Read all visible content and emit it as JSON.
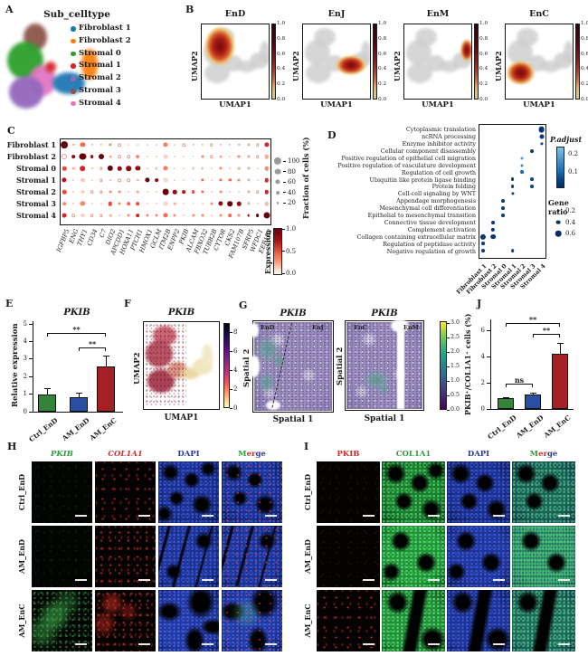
{
  "panelA": {
    "label": "A",
    "title": "Sub_celltype",
    "legend": [
      {
        "label": "Fibroblast 1",
        "color": "#1f77b4"
      },
      {
        "label": "Fibroblast 2",
        "color": "#ff7f0e"
      },
      {
        "label": "Stromal 0",
        "color": "#2ca02c"
      },
      {
        "label": "Stromal 1",
        "color": "#d62728"
      },
      {
        "label": "Stromal 2",
        "color": "#9467bd"
      },
      {
        "label": "Stromal 3",
        "color": "#8c564b"
      },
      {
        "label": "Stromal 4",
        "color": "#e377c2"
      }
    ]
  },
  "panelB": {
    "label": "B",
    "xlabel": "UMAP1",
    "ylabel": "UMAP2",
    "colorbar_ticks": [
      "1.0",
      "0.8",
      "0.6",
      "0.4",
      "0.2",
      "0.0"
    ],
    "subplots": [
      {
        "title": "EnD"
      },
      {
        "title": "EnJ"
      },
      {
        "title": "EnM"
      },
      {
        "title": "EnC"
      }
    ]
  },
  "panelC": {
    "label": "C",
    "size_legend_title": "Fraction of cells (%)",
    "size_legend_values": [
      "100",
      "80",
      "60",
      "40",
      "20"
    ],
    "colorbar_title": "Expression",
    "colorbar_ticks": [
      "1.0",
      "0.5",
      "0.0"
    ]
  },
  "panelD": {
    "label": "D",
    "padjust_title": "P.adjust",
    "padjust_ticks": [
      "0.2",
      "0.1"
    ],
    "generatio_title": "Gene ratio",
    "generatio_values": [
      "0.2",
      "0.4",
      "0.6"
    ],
    "categories": [
      "Fibroblast 1",
      "Fibroblast 2",
      "Stromal 0",
      "Stromal 1",
      "Stromal 2",
      "Stromal 3",
      "Stromal 4"
    ]
  },
  "panelE": {
    "label": "E",
    "title": "PKIB",
    "ylabel": "Relative expression"
  },
  "panelF": {
    "label": "F",
    "title": "PKIB",
    "xlabel": "UMAP1",
    "ylabel": "UMAP2",
    "colorbar_ticks": [
      "8",
      "6",
      "4",
      "2",
      "0"
    ]
  },
  "panelG": {
    "label": "G",
    "colorbar_ticks": [
      "3.0",
      "2.5",
      "2.0",
      "1.5",
      "1.0",
      "0.5",
      "0.0"
    ],
    "plots": [
      {
        "title": "PKIB",
        "xlabel": "Spatial 1",
        "ylabel": "Spatial 2",
        "region_left": "EnD",
        "region_right": "EnJ"
      },
      {
        "title": "PKIB",
        "xlabel": "Spatial 1",
        "ylabel": "Spatial 2",
        "region_left": "EnC",
        "region_right": "EnM"
      }
    ]
  },
  "panelJ": {
    "label": "J",
    "ylabel": "PKIB⁺/COL1A1⁺ cells (%)"
  },
  "panelH": {
    "label": "H",
    "columns": [
      {
        "label": "PKIB",
        "color": "#2e9e3c",
        "italic": true
      },
      {
        "label": "COL1A1",
        "color": "#cf3030",
        "italic": true
      },
      {
        "label": "DAPI",
        "color": "#2b3990",
        "italic": false
      },
      {
        "label": "Merge",
        "parts": [
          {
            "text": "M",
            "color": "#2e9e3c"
          },
          {
            "text": "er",
            "color": "#cf3030"
          },
          {
            "text": "ge",
            "color": "#2b3990"
          }
        ]
      }
    ],
    "rows": [
      "Ctrl_EnD",
      "AM_EnD",
      "AM_EnC"
    ],
    "tile_rows": [
      [
        "ifl-blank-green",
        "ifl-red-sparse",
        "ifl-dapi-a",
        "ifl-merge-a"
      ],
      [
        "ifl-blank-green",
        "ifl-red-sparse2",
        "ifl-dapi-b",
        "ifl-merge-b"
      ],
      [
        "ifl-green-blob",
        "ifl-red-med",
        "ifl-dapi-c",
        "ifl-merge-c"
      ]
    ]
  },
  "panelI": {
    "label": "I",
    "columns": [
      {
        "label": "PKIB",
        "color": "#cf3030",
        "italic": false
      },
      {
        "label": "COL1A1",
        "color": "#2e9e3c",
        "italic": false
      },
      {
        "label": "DAPI",
        "color": "#2b3990",
        "italic": false
      },
      {
        "label": "Merge",
        "parts": [
          {
            "text": "M",
            "color": "#2e9e3c"
          },
          {
            "text": "er",
            "color": "#cf3030"
          },
          {
            "text": "ge",
            "color": "#2b3990"
          }
        ]
      }
    ],
    "rows": [
      "Ctrl_EnD",
      "AM_EnD",
      "AM_EnC"
    ],
    "tile_rows": [
      [
        "ifl-blank-red",
        "ifl-colg-a",
        "ifl-dapi-d",
        "ifl-mergeI-a"
      ],
      [
        "ifl-blank-red",
        "ifl-colg-b",
        "ifl-dapi-e",
        "ifl-mergeI-b"
      ],
      [
        "ifl-red-sparse",
        "ifl-colg-c",
        "ifl-dapi-f",
        "ifl-mergeI-c"
      ]
    ]
  },
  "chart_data": [
    {
      "id": "E",
      "type": "bar",
      "title": "PKIB",
      "ylabel": "Relative expression",
      "ylim": [
        0,
        5
      ],
      "yticks": [
        5,
        4,
        3,
        2,
        1,
        0
      ],
      "categories": [
        "Ctrl_EnD",
        "AM_EnD",
        "AM_EnC"
      ],
      "values": [
        1.0,
        0.82,
        2.6
      ],
      "errors": [
        0.35,
        0.25,
        0.6
      ],
      "colors": [
        "#35823b",
        "#2a4fa2",
        "#a32125"
      ],
      "significance": [
        {
          "from": 0,
          "to": 2,
          "label": "**"
        },
        {
          "from": 1,
          "to": 2,
          "label": "**"
        }
      ]
    },
    {
      "id": "J",
      "type": "bar",
      "ylabel": "PKIB⁺/COL1A1⁺ cells (%)",
      "ylim": [
        0,
        6
      ],
      "yticks": [
        6,
        4,
        2,
        0
      ],
      "categories": [
        "Ctrl_EnD",
        "AM_EnD",
        "AM_EnC"
      ],
      "values": [
        0.8,
        1.1,
        4.2
      ],
      "errors": [
        0.12,
        0.12,
        0.85
      ],
      "colors": [
        "#35823b",
        "#2a4fa2",
        "#a32125"
      ],
      "significance": [
        {
          "from": 0,
          "to": 2,
          "label": "**"
        },
        {
          "from": 1,
          "to": 2,
          "label": "**"
        },
        {
          "from": 0,
          "to": 1,
          "label": "ns"
        }
      ]
    },
    {
      "id": "C",
      "type": "dotplot",
      "rows": [
        "Fibroblast 1",
        "Fibroblast 2",
        "Stromal 0",
        "Stromal 1",
        "Stromal 2",
        "Stromal 3",
        "Stromal 4"
      ],
      "genes": [
        "IGFBP5",
        "ENG",
        "THY1",
        "CD34",
        "C7",
        "DIO2",
        "APCDD1",
        "HOXA11",
        "PTCH1",
        "HMOX1",
        "GCLM",
        "ITM2B",
        "ENPP2",
        "PKIB",
        "ALCAM",
        "FBXO32",
        "TUBB2B",
        "CYTOR",
        "CKS2",
        "FAM107B",
        "SFRP5",
        "WFDC1",
        "EEF1B2"
      ],
      "expression": [
        [
          1.0,
          0.3,
          0.5,
          0.3,
          0.3,
          0.4,
          0.1,
          0.2,
          0.2,
          0.2,
          0.2,
          0.45,
          0.2,
          0.1,
          0.3,
          0.3,
          0.1,
          0.3,
          0.3,
          0.3,
          0.1,
          0.1,
          0.7
        ],
        [
          0.1,
          0.9,
          1.0,
          0.9,
          1.0,
          0.3,
          0.1,
          0.1,
          0.4,
          0.2,
          0.2,
          0.15,
          0.2,
          0.2,
          0.2,
          0.4,
          0.1,
          0.3,
          0.2,
          0.4,
          0.1,
          0.1,
          0.3
        ],
        [
          0.6,
          0.3,
          0.7,
          0.3,
          0.1,
          1.0,
          0.9,
          0.9,
          0.9,
          0.2,
          0.3,
          0.45,
          0.2,
          0.2,
          0.3,
          0.3,
          0.2,
          0.4,
          0.2,
          0.3,
          0.1,
          0.2,
          0.4
        ],
        [
          0.8,
          0.2,
          0.2,
          0.2,
          0.1,
          0.3,
          0.1,
          0.1,
          0.3,
          1.0,
          0.9,
          0.15,
          0.2,
          0.2,
          0.2,
          0.5,
          0.2,
          0.5,
          0.5,
          0.4,
          0.1,
          0.2,
          0.7
        ],
        [
          0.6,
          0.2,
          0.15,
          0.1,
          0.1,
          0.4,
          0.4,
          0.2,
          0.3,
          0.2,
          0.2,
          1.0,
          0.9,
          0.8,
          0.6,
          0.5,
          0.2,
          0.4,
          0.2,
          0.2,
          0.1,
          0.1,
          0.7
        ],
        [
          0.4,
          0.2,
          0.4,
          0.2,
          0.2,
          0.6,
          0.4,
          0.5,
          0.6,
          0.2,
          0.2,
          0.15,
          0.3,
          0.2,
          0.2,
          0.2,
          0.4,
          0.9,
          1.0,
          0.9,
          0.1,
          0.2,
          0.25
        ],
        [
          0.7,
          0.1,
          0.15,
          0.1,
          0.1,
          0.3,
          0.2,
          0.4,
          0.7,
          0.4,
          0.4,
          0.5,
          0.4,
          0.2,
          0.4,
          0.4,
          0.2,
          0.4,
          0.5,
          0.4,
          0.9,
          1.0,
          1.0
        ]
      ],
      "fraction": [
        [
          95,
          20,
          60,
          20,
          20,
          35,
          10,
          15,
          15,
          15,
          15,
          60,
          15,
          10,
          20,
          20,
          10,
          20,
          20,
          20,
          5,
          10,
          60
        ],
        [
          45,
          40,
          85,
          40,
          70,
          25,
          10,
          10,
          40,
          15,
          15,
          55,
          15,
          15,
          15,
          30,
          10,
          25,
          15,
          30,
          5,
          10,
          50
        ],
        [
          50,
          25,
          65,
          20,
          10,
          75,
          50,
          65,
          60,
          15,
          25,
          60,
          15,
          15,
          25,
          25,
          15,
          35,
          15,
          25,
          5,
          15,
          50
        ],
        [
          60,
          15,
          45,
          15,
          10,
          20,
          10,
          10,
          20,
          60,
          40,
          55,
          15,
          15,
          15,
          35,
          15,
          35,
          35,
          30,
          5,
          15,
          50
        ],
        [
          50,
          15,
          45,
          10,
          10,
          30,
          30,
          15,
          25,
          15,
          15,
          80,
          50,
          40,
          40,
          35,
          15,
          30,
          15,
          15,
          5,
          10,
          50
        ],
        [
          40,
          15,
          60,
          15,
          15,
          50,
          30,
          40,
          40,
          15,
          15,
          55,
          25,
          15,
          15,
          15,
          30,
          60,
          65,
          50,
          5,
          15,
          50
        ],
        [
          55,
          10,
          45,
          10,
          10,
          25,
          15,
          30,
          40,
          30,
          30,
          60,
          30,
          15,
          30,
          30,
          15,
          30,
          40,
          30,
          25,
          40,
          85
        ]
      ]
    },
    {
      "id": "D",
      "type": "dotplot",
      "categories": [
        "Fibroblast 1",
        "Fibroblast 2",
        "Stromal 0",
        "Stromal 1",
        "Stromal 2",
        "Stromal 3",
        "Stromal 4"
      ],
      "terms": [
        "Cytoplasmic translation",
        "ncRNA processing",
        "Enzyme inhibitor activity",
        "Cellular component disassembly",
        "Positive regulation of epithelial cell migration",
        "Positive regulation of vasculature development",
        "Regulation of cell growth",
        "Ubiquitin like protein ligase binding",
        "Protein folding",
        "Cell-cell signaling by WNT",
        "Appendage morphogenesis",
        "Mesenchymal cell differentiation",
        "Epithelial to mesenchymal transition",
        "Connective tissue development",
        "Complement activation",
        "Collagen containing extracellular matrix",
        "Regulation of peptidase activity",
        "Negative regulation of growth"
      ],
      "dots": [
        {
          "term": 0,
          "category": "Stromal 4",
          "gene_ratio": 0.62,
          "p_adjust": 0.01
        },
        {
          "term": 1,
          "category": "Stromal 4",
          "gene_ratio": 0.42,
          "p_adjust": 0.02
        },
        {
          "term": 2,
          "category": "Stromal 4",
          "gene_ratio": 0.22,
          "p_adjust": 0.05
        },
        {
          "term": 3,
          "category": "Stromal 3",
          "gene_ratio": 0.3,
          "p_adjust": 0.03
        },
        {
          "term": 4,
          "category": "Stromal 2",
          "gene_ratio": 0.2,
          "p_adjust": 0.22
        },
        {
          "term": 5,
          "category": "Stromal 2",
          "gene_ratio": 0.2,
          "p_adjust": 0.2
        },
        {
          "term": 6,
          "category": "Stromal 2",
          "gene_ratio": 0.3,
          "p_adjust": 0.14
        },
        {
          "term": 7,
          "category": "Stromal 1",
          "gene_ratio": 0.3,
          "p_adjust": 0.03
        },
        {
          "term": 7,
          "category": "Stromal 3",
          "gene_ratio": 0.3,
          "p_adjust": 0.06
        },
        {
          "term": 8,
          "category": "Stromal 1",
          "gene_ratio": 0.3,
          "p_adjust": 0.04
        },
        {
          "term": 8,
          "category": "Stromal 3",
          "gene_ratio": 0.3,
          "p_adjust": 0.06
        },
        {
          "term": 9,
          "category": "Stromal 1",
          "gene_ratio": 0.22,
          "p_adjust": 0.03
        },
        {
          "term": 10,
          "category": "Stromal 0",
          "gene_ratio": 0.3,
          "p_adjust": 0.03
        },
        {
          "term": 11,
          "category": "Stromal 0",
          "gene_ratio": 0.3,
          "p_adjust": 0.03
        },
        {
          "term": 12,
          "category": "Stromal 0",
          "gene_ratio": 0.3,
          "p_adjust": 0.04
        },
        {
          "term": 13,
          "category": "Fibroblast 2",
          "gene_ratio": 0.3,
          "p_adjust": 0.03
        },
        {
          "term": 14,
          "category": "Fibroblast 2",
          "gene_ratio": 0.35,
          "p_adjust": 0.02
        },
        {
          "term": 15,
          "category": "Fibroblast 1",
          "gene_ratio": 0.55,
          "p_adjust": 0.01
        },
        {
          "term": 15,
          "category": "Fibroblast 2",
          "gene_ratio": 0.5,
          "p_adjust": 0.01
        },
        {
          "term": 16,
          "category": "Fibroblast 1",
          "gene_ratio": 0.3,
          "p_adjust": 0.03
        },
        {
          "term": 17,
          "category": "Fibroblast 1",
          "gene_ratio": 0.3,
          "p_adjust": 0.04
        },
        {
          "term": 17,
          "category": "Stromal 1",
          "gene_ratio": 0.28,
          "p_adjust": 0.06
        }
      ]
    }
  ]
}
